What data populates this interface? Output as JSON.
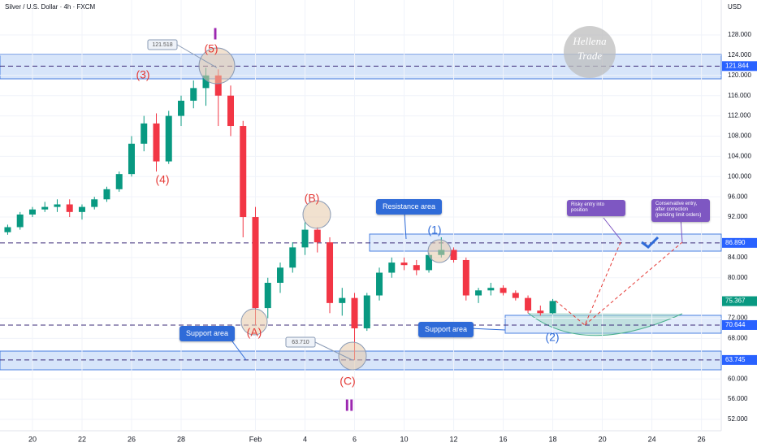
{
  "logo": [
    "Hellena",
    "Trade"
  ],
  "chart_data": {
    "type": "candlestick",
    "title": "Silver / U.S. Dollar · 4h · FXCM",
    "currency": "USD",
    "x": [
      -1,
      -0.5,
      0,
      0.5,
      1,
      1.5,
      2,
      2.5,
      3,
      3.5,
      4,
      4.5,
      5,
      5.5,
      6,
      6.5,
      7,
      7.5,
      8,
      8.5,
      9,
      9.5,
      10,
      10.5,
      11,
      11.5,
      12,
      12.5,
      13,
      13.5,
      14,
      14.5,
      15,
      15.5,
      16,
      16.5,
      17,
      17.5,
      18,
      18.5,
      19,
      19.5,
      20,
      20.5,
      21
    ],
    "open": [
      89,
      90,
      92.5,
      93.5,
      94,
      94.5,
      93,
      94,
      95.5,
      97.5,
      100.5,
      106.5,
      110.5,
      103,
      112,
      115,
      117.5,
      120,
      116,
      110,
      92,
      74,
      79,
      82,
      86,
      89.5,
      87,
      75,
      76,
      70,
      76.5,
      81,
      83,
      82.5,
      81.5,
      84.5,
      85.5,
      83.5,
      76.5,
      77.5,
      78,
      77,
      76,
      73.5,
      73
    ],
    "high": [
      90.5,
      93,
      94,
      95,
      95.5,
      95.5,
      94.5,
      96,
      98,
      101,
      108,
      112,
      112.5,
      113,
      116,
      119,
      121.5,
      121.2,
      118,
      111,
      94,
      80,
      83,
      87,
      91,
      90,
      88,
      78,
      77,
      77,
      82,
      84,
      84,
      83.5,
      85,
      88,
      86,
      84,
      78,
      79,
      78.5,
      77.5,
      76.5,
      74.5,
      75.8
    ],
    "low": [
      88.5,
      89.5,
      92,
      93,
      93,
      92,
      91.5,
      93.5,
      95,
      97,
      100,
      105,
      101,
      102.5,
      110,
      113.5,
      114,
      110,
      108,
      88,
      70.6,
      72,
      77,
      81,
      84.5,
      85,
      73,
      72.5,
      63.7,
      69.5,
      75.5,
      80,
      81.5,
      80.5,
      81,
      84,
      83,
      75.5,
      75,
      76.5,
      76.5,
      75.5,
      73,
      72.5,
      72.8
    ],
    "close": [
      90,
      92.5,
      93.5,
      94,
      94.5,
      93,
      94,
      95.5,
      97.5,
      100.5,
      106.5,
      110.5,
      103,
      112,
      115,
      117.5,
      120,
      116,
      110,
      92,
      74,
      79,
      82,
      86,
      89.5,
      87,
      75,
      76,
      70,
      76.5,
      81,
      83,
      82.5,
      81.5,
      84.5,
      85.5,
      83.5,
      76.5,
      77.5,
      78,
      77,
      76,
      73.5,
      73,
      75.4
    ],
    "up_color": "#089981",
    "down_color": "#f23645",
    "xlim": [
      -1.31,
      27.8
    ],
    "ylim": [
      49.75,
      134.91
    ],
    "xticks": [
      {
        "value": 0,
        "label": "20"
      },
      {
        "value": 2,
        "label": "22"
      },
      {
        "value": 4,
        "label": "26"
      },
      {
        "value": 6,
        "label": "28"
      },
      {
        "value": 9,
        "label": "Feb"
      },
      {
        "value": 11,
        "label": "4"
      },
      {
        "value": 13,
        "label": "6"
      },
      {
        "value": 15,
        "label": "10"
      },
      {
        "value": 17,
        "label": "12"
      },
      {
        "value": 19,
        "label": "16"
      },
      {
        "value": 21,
        "label": "18"
      },
      {
        "value": 23,
        "label": "20"
      },
      {
        "value": 25,
        "label": "24"
      },
      {
        "value": 27,
        "label": "26"
      }
    ],
    "yticks": [
      {
        "value": 52,
        "label": "52.000"
      },
      {
        "value": 56,
        "label": "56.000"
      },
      {
        "value": 60,
        "label": "60.000"
      },
      {
        "value": 68,
        "label": "68.000"
      },
      {
        "value": 72,
        "label": "72.000"
      },
      {
        "value": 80,
        "label": "80.000"
      },
      {
        "value": 84,
        "label": "84.000"
      },
      {
        "value": 92,
        "label": "92.000"
      },
      {
        "value": 96,
        "label": "96.000"
      },
      {
        "value": 100,
        "label": "100.000"
      },
      {
        "value": 104,
        "label": "104.000"
      },
      {
        "value": 108,
        "label": "108.000"
      },
      {
        "value": 112,
        "label": "112.000"
      },
      {
        "value": 116,
        "label": "116.000"
      },
      {
        "value": 120,
        "label": "120.000"
      },
      {
        "value": 124,
        "label": "124.000"
      },
      {
        "value": 128,
        "label": "128.000"
      }
    ],
    "levels": [
      {
        "value": 121.844,
        "label": "121.844",
        "color": "#2962ff",
        "line": true
      },
      {
        "value": 86.89,
        "label": "86.890",
        "color": "#2962ff",
        "line": true
      },
      {
        "value": 75.367,
        "label": "75.367",
        "color": "#089981",
        "line": false
      },
      {
        "value": 70.644,
        "label": "70.644",
        "color": "#2962ff",
        "line": true
      },
      {
        "value": 63.745,
        "label": "63.745",
        "color": "#2962ff",
        "line": true
      }
    ],
    "price_notes": [
      {
        "value": 121.518,
        "label": "121.518"
      },
      {
        "value": 63.71,
        "label": "63.710"
      }
    ],
    "wave_labels": [
      "I",
      "(5)",
      "(3)",
      "(4)",
      "(B)",
      "(A)",
      "(C)",
      "II",
      "(1)",
      "(2)"
    ],
    "callouts": [
      "Resistance area",
      "Support area",
      "Support area",
      "Risky entry into position",
      "Conservative entry, after correction (pending limit orders)"
    ]
  }
}
